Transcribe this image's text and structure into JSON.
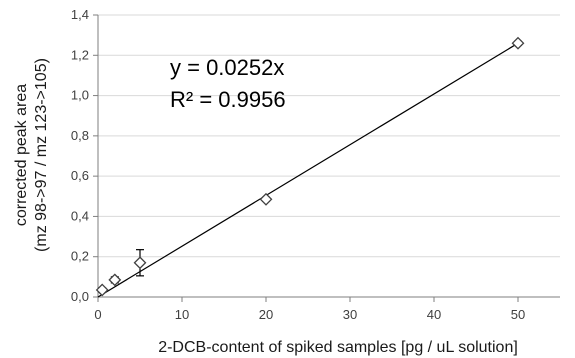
{
  "chart_data": {
    "type": "scatter",
    "xlabel": "2-DCB-content of spiked samples [pg / uL solution]",
    "ylabel_line1": "corrected peak area",
    "ylabel_line2": "(mz 98->97 / mz 123->105)",
    "xlim": [
      0,
      55
    ],
    "ylim": [
      0,
      1.4
    ],
    "x_ticks": [
      0,
      10,
      20,
      30,
      40,
      50
    ],
    "x_tick_labels": [
      "0",
      "10",
      "20",
      "30",
      "40",
      "50"
    ],
    "y_ticks": [
      0,
      0.2,
      0.4,
      0.6,
      0.8,
      1.0,
      1.2,
      1.4
    ],
    "y_tick_labels": [
      "0,0",
      "0,2",
      "0,4",
      "0,6",
      "0,8",
      "1,0",
      "1,2",
      "1,4"
    ],
    "grid": "horizontal",
    "marker": "diamond",
    "series": [
      {
        "points": [
          {
            "x": 0.5,
            "y": 0.035,
            "err": 0.01
          },
          {
            "x": 2,
            "y": 0.085,
            "err": 0.015
          },
          {
            "x": 5,
            "y": 0.17,
            "err": 0.065
          },
          {
            "x": 20,
            "y": 0.485,
            "err": 0.01
          },
          {
            "x": 50,
            "y": 1.26,
            "err": 0.01
          }
        ]
      }
    ],
    "trendline": {
      "slope": 0.0252,
      "intercept": 0,
      "x_range": [
        0,
        50
      ]
    },
    "annotations": {
      "equation": "y = 0.0252x",
      "r2": "R² = 0.9956"
    },
    "colors": {
      "grid": "#d9d9d9",
      "axis": "#7f7f7f",
      "marker_stroke": "#404040",
      "trendline": "#000000"
    }
  }
}
